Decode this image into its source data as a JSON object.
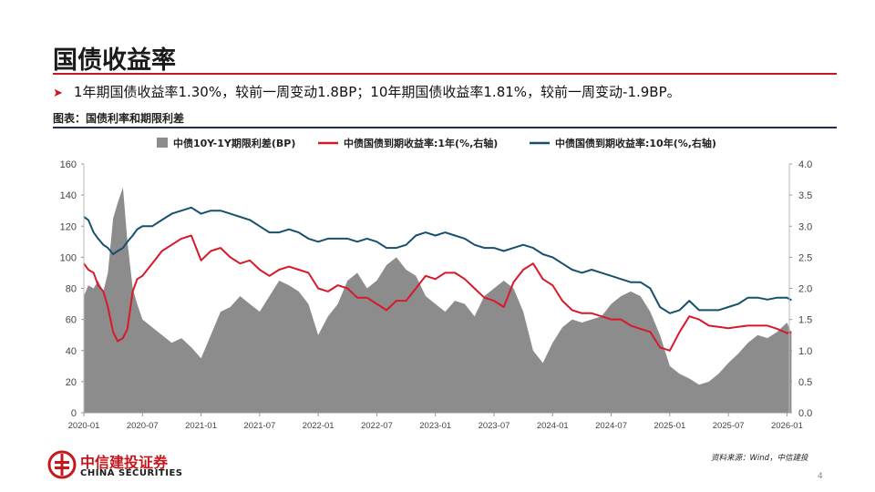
{
  "page": {
    "title": "国债收益率",
    "bullet": "1年期国债收益率1.30%，较前一周变动1.8BP；10年期国债收益率1.81%，较前一周变动-1.9BP。",
    "caption": "图表：国债利率和期限利差",
    "source": "资料来源：Wind，中信建投",
    "page_number": "4"
  },
  "brand": {
    "name_cn": "中信建投证券",
    "name_en": "CHINA SECURITIES",
    "colors": {
      "accent_red": "#c8161d",
      "navy": "#1f2d5a"
    }
  },
  "chart_data": {
    "type": "area",
    "legend_position": "top",
    "grid": false,
    "x_ticks": [
      "2020-01",
      "2020-07",
      "2021-01",
      "2021-07",
      "2022-01",
      "2022-07",
      "2023-01",
      "2023-07",
      "2024-01",
      "2024-07",
      "2025-01",
      "2025-07",
      "2026-01"
    ],
    "x_range": [
      "2020-01",
      "2026-01"
    ],
    "y_left": {
      "range": [
        0,
        160
      ],
      "ticks": [
        "0",
        "20",
        "40",
        "60",
        "80",
        "100",
        "120",
        "140",
        "160"
      ]
    },
    "y_right": {
      "range": [
        0,
        4.0
      ],
      "ticks": [
        "0.0",
        "0.5",
        "1.0",
        "1.5",
        "2.0",
        "2.5",
        "3.0",
        "3.5",
        "4.0"
      ]
    },
    "series": [
      {
        "name": "中债10Y-1Y期限利差(BP)",
        "type": "area",
        "axis": "left",
        "color": "#8c8c8c",
        "points": [
          [
            "2020-01-01",
            75
          ],
          [
            "2020-01-15",
            82
          ],
          [
            "2020-02-01",
            80
          ],
          [
            "2020-02-15",
            85
          ],
          [
            "2020-03-01",
            78
          ],
          [
            "2020-03-15",
            90
          ],
          [
            "2020-04-01",
            125
          ],
          [
            "2020-04-15",
            135
          ],
          [
            "2020-05-01",
            145
          ],
          [
            "2020-05-15",
            110
          ],
          [
            "2020-06-01",
            80
          ],
          [
            "2020-06-15",
            70
          ],
          [
            "2020-07-01",
            60
          ],
          [
            "2020-08-01",
            55
          ],
          [
            "2020-09-01",
            50
          ],
          [
            "2020-10-01",
            45
          ],
          [
            "2020-11-01",
            48
          ],
          [
            "2020-12-01",
            42
          ],
          [
            "2021-01-01",
            35
          ],
          [
            "2021-02-01",
            50
          ],
          [
            "2021-03-01",
            65
          ],
          [
            "2021-04-01",
            68
          ],
          [
            "2021-05-01",
            75
          ],
          [
            "2021-06-01",
            70
          ],
          [
            "2021-07-01",
            65
          ],
          [
            "2021-08-01",
            75
          ],
          [
            "2021-09-01",
            85
          ],
          [
            "2021-10-01",
            82
          ],
          [
            "2021-11-01",
            78
          ],
          [
            "2021-12-01",
            70
          ],
          [
            "2022-01-01",
            50
          ],
          [
            "2022-02-01",
            62
          ],
          [
            "2022-03-01",
            70
          ],
          [
            "2022-04-01",
            85
          ],
          [
            "2022-05-01",
            90
          ],
          [
            "2022-06-01",
            80
          ],
          [
            "2022-07-01",
            85
          ],
          [
            "2022-08-01",
            95
          ],
          [
            "2022-09-01",
            100
          ],
          [
            "2022-10-01",
            92
          ],
          [
            "2022-11-01",
            88
          ],
          [
            "2022-12-01",
            75
          ],
          [
            "2023-01-01",
            70
          ],
          [
            "2023-02-01",
            65
          ],
          [
            "2023-03-01",
            72
          ],
          [
            "2023-04-01",
            70
          ],
          [
            "2023-05-01",
            62
          ],
          [
            "2023-06-01",
            75
          ],
          [
            "2023-07-01",
            80
          ],
          [
            "2023-08-01",
            85
          ],
          [
            "2023-09-01",
            80
          ],
          [
            "2023-10-01",
            65
          ],
          [
            "2023-11-01",
            40
          ],
          [
            "2023-12-01",
            32
          ],
          [
            "2024-01-01",
            45
          ],
          [
            "2024-02-01",
            55
          ],
          [
            "2024-03-01",
            60
          ],
          [
            "2024-04-01",
            58
          ],
          [
            "2024-05-01",
            60
          ],
          [
            "2024-06-01",
            62
          ],
          [
            "2024-07-01",
            70
          ],
          [
            "2024-08-01",
            75
          ],
          [
            "2024-09-01",
            78
          ],
          [
            "2024-10-01",
            75
          ],
          [
            "2024-11-01",
            65
          ],
          [
            "2024-12-01",
            50
          ],
          [
            "2025-01-01",
            30
          ],
          [
            "2025-02-01",
            25
          ],
          [
            "2025-03-01",
            22
          ],
          [
            "2025-04-01",
            18
          ],
          [
            "2025-05-01",
            20
          ],
          [
            "2025-06-01",
            25
          ],
          [
            "2025-07-01",
            32
          ],
          [
            "2025-08-01",
            38
          ],
          [
            "2025-09-01",
            45
          ],
          [
            "2025-10-01",
            50
          ],
          [
            "2025-11-01",
            48
          ],
          [
            "2025-12-01",
            52
          ],
          [
            "2026-01-01",
            58
          ],
          [
            "2026-01-15",
            51
          ]
        ]
      },
      {
        "name": "中债国债到期收益率:1年(%,右轴)",
        "type": "line",
        "axis": "right",
        "color": "#d7192a",
        "points": [
          [
            "2020-01-01",
            2.4
          ],
          [
            "2020-01-15",
            2.3
          ],
          [
            "2020-02-01",
            2.25
          ],
          [
            "2020-02-15",
            2.05
          ],
          [
            "2020-03-01",
            1.95
          ],
          [
            "2020-03-15",
            1.7
          ],
          [
            "2020-04-01",
            1.3
          ],
          [
            "2020-04-15",
            1.15
          ],
          [
            "2020-05-01",
            1.2
          ],
          [
            "2020-05-15",
            1.35
          ],
          [
            "2020-06-01",
            1.95
          ],
          [
            "2020-06-15",
            2.15
          ],
          [
            "2020-07-01",
            2.2
          ],
          [
            "2020-08-01",
            2.4
          ],
          [
            "2020-09-01",
            2.6
          ],
          [
            "2020-10-01",
            2.7
          ],
          [
            "2020-11-01",
            2.8
          ],
          [
            "2020-12-01",
            2.85
          ],
          [
            "2021-01-01",
            2.45
          ],
          [
            "2021-02-01",
            2.6
          ],
          [
            "2021-03-01",
            2.65
          ],
          [
            "2021-04-01",
            2.5
          ],
          [
            "2021-05-01",
            2.4
          ],
          [
            "2021-06-01",
            2.45
          ],
          [
            "2021-07-01",
            2.3
          ],
          [
            "2021-08-01",
            2.2
          ],
          [
            "2021-09-01",
            2.3
          ],
          [
            "2021-10-01",
            2.35
          ],
          [
            "2021-11-01",
            2.3
          ],
          [
            "2021-12-01",
            2.25
          ],
          [
            "2022-01-01",
            2.0
          ],
          [
            "2022-02-01",
            1.95
          ],
          [
            "2022-03-01",
            2.05
          ],
          [
            "2022-04-01",
            2.0
          ],
          [
            "2022-05-01",
            1.85
          ],
          [
            "2022-06-01",
            1.85
          ],
          [
            "2022-07-01",
            1.75
          ],
          [
            "2022-08-01",
            1.65
          ],
          [
            "2022-09-01",
            1.8
          ],
          [
            "2022-10-01",
            1.8
          ],
          [
            "2022-11-01",
            2.0
          ],
          [
            "2022-12-01",
            2.2
          ],
          [
            "2023-01-01",
            2.15
          ],
          [
            "2023-02-01",
            2.25
          ],
          [
            "2023-03-01",
            2.25
          ],
          [
            "2023-04-01",
            2.15
          ],
          [
            "2023-05-01",
            2.0
          ],
          [
            "2023-06-01",
            1.85
          ],
          [
            "2023-07-01",
            1.8
          ],
          [
            "2023-08-01",
            1.7
          ],
          [
            "2023-09-01",
            2.1
          ],
          [
            "2023-10-01",
            2.3
          ],
          [
            "2023-11-01",
            2.4
          ],
          [
            "2023-12-01",
            2.15
          ],
          [
            "2024-01-01",
            2.05
          ],
          [
            "2024-02-01",
            1.8
          ],
          [
            "2024-03-01",
            1.65
          ],
          [
            "2024-04-01",
            1.6
          ],
          [
            "2024-05-01",
            1.6
          ],
          [
            "2024-06-01",
            1.55
          ],
          [
            "2024-07-01",
            1.5
          ],
          [
            "2024-08-01",
            1.5
          ],
          [
            "2024-09-01",
            1.4
          ],
          [
            "2024-10-01",
            1.35
          ],
          [
            "2024-11-01",
            1.3
          ],
          [
            "2024-12-01",
            1.05
          ],
          [
            "2025-01-01",
            1.0
          ],
          [
            "2025-02-01",
            1.3
          ],
          [
            "2025-03-01",
            1.55
          ],
          [
            "2025-04-01",
            1.5
          ],
          [
            "2025-05-01",
            1.4
          ],
          [
            "2025-06-01",
            1.38
          ],
          [
            "2025-07-01",
            1.36
          ],
          [
            "2025-08-01",
            1.38
          ],
          [
            "2025-09-01",
            1.4
          ],
          [
            "2025-10-01",
            1.4
          ],
          [
            "2025-11-01",
            1.4
          ],
          [
            "2025-12-01",
            1.35
          ],
          [
            "2026-01-01",
            1.28
          ],
          [
            "2026-01-15",
            1.3
          ]
        ]
      },
      {
        "name": "中债国债到期收益率:10年(%,右轴)",
        "type": "line",
        "axis": "right",
        "color": "#17506e",
        "points": [
          [
            "2020-01-01",
            3.15
          ],
          [
            "2020-01-15",
            3.1
          ],
          [
            "2020-02-01",
            2.9
          ],
          [
            "2020-02-15",
            2.8
          ],
          [
            "2020-03-01",
            2.7
          ],
          [
            "2020-03-15",
            2.65
          ],
          [
            "2020-04-01",
            2.55
          ],
          [
            "2020-04-15",
            2.6
          ],
          [
            "2020-05-01",
            2.65
          ],
          [
            "2020-05-15",
            2.75
          ],
          [
            "2020-06-01",
            2.85
          ],
          [
            "2020-06-15",
            2.95
          ],
          [
            "2020-07-01",
            3.0
          ],
          [
            "2020-08-01",
            3.0
          ],
          [
            "2020-09-01",
            3.1
          ],
          [
            "2020-10-01",
            3.2
          ],
          [
            "2020-11-01",
            3.25
          ],
          [
            "2020-12-01",
            3.3
          ],
          [
            "2021-01-01",
            3.2
          ],
          [
            "2021-02-01",
            3.25
          ],
          [
            "2021-03-01",
            3.25
          ],
          [
            "2021-04-01",
            3.2
          ],
          [
            "2021-05-01",
            3.15
          ],
          [
            "2021-06-01",
            3.1
          ],
          [
            "2021-07-01",
            3.0
          ],
          [
            "2021-08-01",
            2.9
          ],
          [
            "2021-09-01",
            2.9
          ],
          [
            "2021-10-01",
            2.95
          ],
          [
            "2021-11-01",
            2.9
          ],
          [
            "2021-12-01",
            2.8
          ],
          [
            "2022-01-01",
            2.75
          ],
          [
            "2022-02-01",
            2.8
          ],
          [
            "2022-03-01",
            2.8
          ],
          [
            "2022-04-01",
            2.8
          ],
          [
            "2022-05-01",
            2.75
          ],
          [
            "2022-06-01",
            2.8
          ],
          [
            "2022-07-01",
            2.75
          ],
          [
            "2022-08-01",
            2.65
          ],
          [
            "2022-09-01",
            2.65
          ],
          [
            "2022-10-01",
            2.7
          ],
          [
            "2022-11-01",
            2.85
          ],
          [
            "2022-12-01",
            2.9
          ],
          [
            "2023-01-01",
            2.85
          ],
          [
            "2023-02-01",
            2.9
          ],
          [
            "2023-03-01",
            2.85
          ],
          [
            "2023-04-01",
            2.8
          ],
          [
            "2023-05-01",
            2.7
          ],
          [
            "2023-06-01",
            2.65
          ],
          [
            "2023-07-01",
            2.65
          ],
          [
            "2023-08-01",
            2.6
          ],
          [
            "2023-09-01",
            2.65
          ],
          [
            "2023-10-01",
            2.7
          ],
          [
            "2023-11-01",
            2.65
          ],
          [
            "2023-12-01",
            2.55
          ],
          [
            "2024-01-01",
            2.5
          ],
          [
            "2024-02-01",
            2.4
          ],
          [
            "2024-03-01",
            2.3
          ],
          [
            "2024-04-01",
            2.25
          ],
          [
            "2024-05-01",
            2.3
          ],
          [
            "2024-06-01",
            2.25
          ],
          [
            "2024-07-01",
            2.2
          ],
          [
            "2024-08-01",
            2.15
          ],
          [
            "2024-09-01",
            2.1
          ],
          [
            "2024-10-01",
            2.1
          ],
          [
            "2024-11-01",
            2.0
          ],
          [
            "2024-12-01",
            1.7
          ],
          [
            "2025-01-01",
            1.6
          ],
          [
            "2025-02-01",
            1.65
          ],
          [
            "2025-03-01",
            1.8
          ],
          [
            "2025-04-01",
            1.65
          ],
          [
            "2025-05-01",
            1.65
          ],
          [
            "2025-06-01",
            1.65
          ],
          [
            "2025-07-01",
            1.7
          ],
          [
            "2025-08-01",
            1.75
          ],
          [
            "2025-09-01",
            1.85
          ],
          [
            "2025-10-01",
            1.85
          ],
          [
            "2025-11-01",
            1.82
          ],
          [
            "2025-12-01",
            1.85
          ],
          [
            "2026-01-01",
            1.85
          ],
          [
            "2026-01-15",
            1.81
          ]
        ]
      }
    ]
  }
}
